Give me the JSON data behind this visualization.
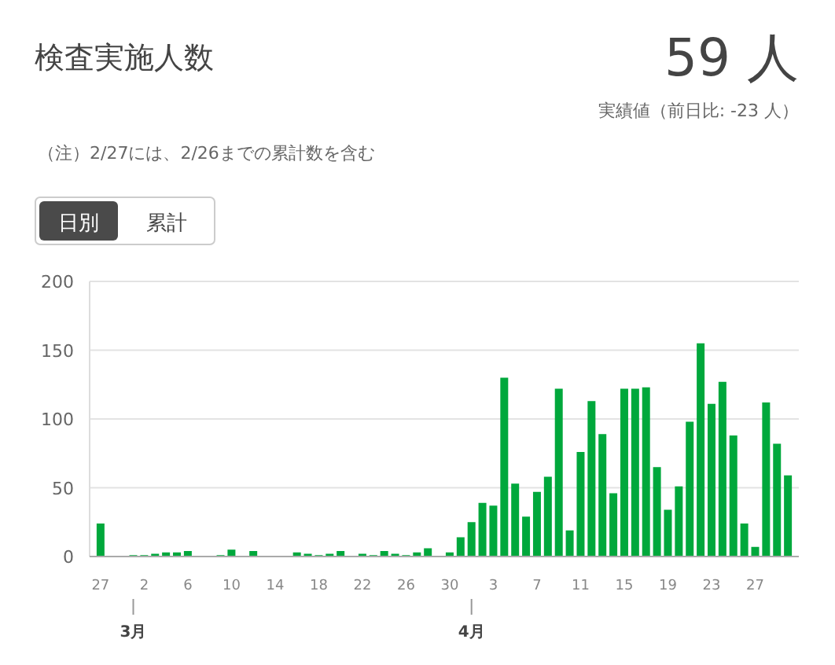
{
  "chart_data": {
    "type": "bar",
    "title": "検査実施人数",
    "annotations": [
      "59 人",
      "実績値（前日比: -23 人）",
      "（注）2/27には、2/26までの累計数を含む",
      "日別",
      "累計",
      {
        "text": "3月",
        "x": "--03-01"
      },
      {
        "text": "4月",
        "x": "--04-01"
      }
    ],
    "x": [
      "--02-27",
      "--02-28",
      "--02-29",
      "--03-01",
      "--03-02",
      "--03-03",
      "--03-04",
      "--03-05",
      "--03-06",
      "--03-07",
      "--03-08",
      "--03-09",
      "--03-10",
      "--03-11",
      "--03-12",
      "--03-13",
      "--03-14",
      "--03-15",
      "--03-16",
      "--03-17",
      "--03-18",
      "--03-19",
      "--03-20",
      "--03-21",
      "--03-22",
      "--03-23",
      "--03-24",
      "--03-25",
      "--03-26",
      "--03-27",
      "--03-28",
      "--03-29",
      "--03-30",
      "--03-31",
      "--04-01",
      "--04-02",
      "--04-03",
      "--04-04",
      "--04-05",
      "--04-06",
      "--04-07",
      "--04-08",
      "--04-09",
      "--04-10",
      "--04-11",
      "--04-12",
      "--04-13",
      "--04-14",
      "--04-15",
      "--04-16",
      "--04-17",
      "--04-18",
      "--04-19",
      "--04-20",
      "--04-21",
      "--04-22",
      "--04-23",
      "--04-24",
      "--04-25",
      "--04-26",
      "--04-27",
      "--04-28",
      "--04-29",
      "--04-30"
    ],
    "values": [
      24,
      0,
      0,
      1,
      1,
      2,
      3,
      3,
      4,
      0,
      0,
      1,
      5,
      0,
      4,
      0,
      0,
      0,
      3,
      2,
      1,
      2,
      4,
      0,
      2,
      1,
      4,
      2,
      1,
      3,
      6,
      0,
      3,
      14,
      25,
      39,
      37,
      130,
      53,
      29,
      47,
      58,
      122,
      19,
      76,
      113,
      89,
      46,
      122,
      122,
      123,
      65,
      34,
      51,
      98,
      155,
      111,
      127,
      88,
      24,
      7,
      112,
      82,
      59
    ],
    "color": "#00a83c",
    "ylim": [
      0,
      200
    ],
    "yticks": [
      0,
      50,
      100,
      150,
      200
    ],
    "xlim": [
      "--02-26",
      "--05-01"
    ],
    "xticks": [
      {
        "value": "--02-27",
        "label": "27"
      },
      {
        "value": "--03-02",
        "label": "2"
      },
      {
        "value": "--03-06",
        "label": "6"
      },
      {
        "value": "--03-10",
        "label": "10"
      },
      {
        "value": "--03-14",
        "label": "14"
      },
      {
        "value": "--03-18",
        "label": "18"
      },
      {
        "value": "--03-22",
        "label": "22"
      },
      {
        "value": "--03-26",
        "label": "26"
      },
      {
        "value": "--03-30",
        "label": "30"
      },
      {
        "value": "--04-03",
        "label": "3"
      },
      {
        "value": "--04-07",
        "label": "7"
      },
      {
        "value": "--04-11",
        "label": "11"
      },
      {
        "value": "--04-15",
        "label": "15"
      },
      {
        "value": "--04-19",
        "label": "19"
      },
      {
        "value": "--04-23",
        "label": "23"
      },
      {
        "value": "--04-27",
        "label": "27"
      }
    ],
    "grid": "y"
  }
}
